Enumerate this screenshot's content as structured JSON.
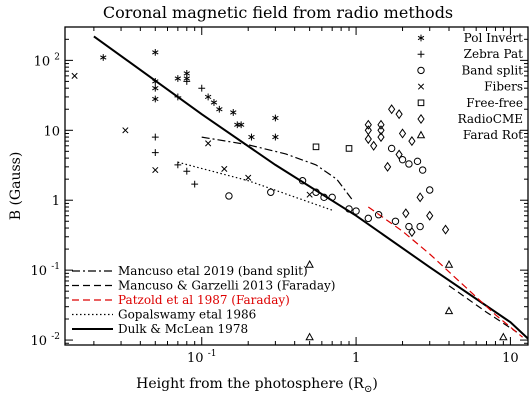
{
  "chart_data": {
    "type": "scatter",
    "title": "Coronal magnetic field from radio methods",
    "xlabel": "Height from the photosphere (R",
    "xlabel_sub": "⊙",
    "xlabel_close": ")",
    "ylabel": "B (Gauss)",
    "x_scale": "log",
    "y_scale": "log",
    "xlim": [
      0.013,
      13
    ],
    "ylim": [
      0.0085,
      300
    ],
    "grid": false,
    "x_ticks": [
      {
        "value": 0.1,
        "base": "10",
        "exp": "-1"
      },
      {
        "value": 1,
        "label": "1"
      },
      {
        "value": 10,
        "label": "10"
      }
    ],
    "y_ticks": [
      {
        "value": 0.01,
        "base": "10",
        "exp": "-2"
      },
      {
        "value": 0.1,
        "base": "10",
        "exp": "-1"
      },
      {
        "value": 1,
        "label": "1"
      },
      {
        "value": 10,
        "label": "10"
      },
      {
        "value": 100,
        "base": "10",
        "exp": "2"
      }
    ],
    "marker_legend": [
      {
        "symbol": "*",
        "label": "Pol Invert"
      },
      {
        "symbol": "+",
        "label": "Zebra Pat"
      },
      {
        "symbol": "○",
        "label": "Band split"
      },
      {
        "symbol": "×",
        "label": "Fibers"
      },
      {
        "symbol": "□",
        "label": "Free-free"
      },
      {
        "symbol": "◇",
        "label": "RadioCME"
      },
      {
        "symbol": "△",
        "label": "Farad Rot"
      }
    ],
    "line_legend": [
      {
        "label": "Mancuso etal 2019 (band split)",
        "dash": "dashdot",
        "color": "#000000"
      },
      {
        "label": "Mancuso & Garzelli 2013 (Faraday)",
        "dash": "dashed",
        "color": "#000000"
      },
      {
        "label": "Patzold et al 1987 (Faraday)",
        "dash": "dashed",
        "color": "#dd0000"
      },
      {
        "label": "Gopalswamy etal 1986",
        "dash": "dotted",
        "color": "#000000"
      },
      {
        "label": "Dulk & McLean 1978",
        "dash": "solid",
        "color": "#000000"
      }
    ],
    "series": [
      {
        "name": "Pol Invert",
        "marker": "star",
        "points": [
          [
            0.023,
            110
          ],
          [
            0.05,
            130
          ],
          [
            0.05,
            50
          ],
          [
            0.05,
            40
          ],
          [
            0.05,
            28
          ],
          [
            0.07,
            55
          ],
          [
            0.08,
            65
          ],
          [
            0.08,
            55
          ],
          [
            0.11,
            30
          ],
          [
            0.12,
            25
          ],
          [
            0.13,
            20
          ],
          [
            0.16,
            18
          ],
          [
            0.17,
            12
          ],
          [
            0.18,
            12
          ],
          [
            0.21,
            8
          ],
          [
            0.3,
            15
          ],
          [
            0.3,
            8
          ]
        ]
      },
      {
        "name": "Zebra Pat",
        "marker": "plus",
        "points": [
          [
            0.08,
            50
          ],
          [
            0.1,
            40
          ],
          [
            0.07,
            30
          ],
          [
            0.05,
            8
          ],
          [
            0.05,
            4.8
          ],
          [
            0.07,
            3.2
          ],
          [
            0.08,
            2.6
          ],
          [
            0.09,
            1.7
          ]
        ]
      },
      {
        "name": "Band split",
        "marker": "circle",
        "points": [
          [
            0.15,
            1.15
          ],
          [
            0.28,
            1.3
          ],
          [
            0.45,
            1.9
          ],
          [
            0.55,
            1.3
          ],
          [
            0.62,
            1.1
          ],
          [
            0.7,
            1.1
          ],
          [
            0.9,
            0.75
          ],
          [
            1.0,
            0.7
          ],
          [
            1.2,
            0.55
          ],
          [
            1.4,
            0.62
          ],
          [
            1.7,
            5.5
          ],
          [
            2.0,
            3.8
          ],
          [
            2.2,
            3.3
          ],
          [
            2.5,
            3.6
          ],
          [
            2.7,
            2.7
          ],
          [
            3.0,
            1.4
          ],
          [
            1.8,
            0.5
          ],
          [
            2.2,
            0.42
          ],
          [
            2.6,
            0.42
          ]
        ]
      },
      {
        "name": "Fibers",
        "marker": "cross",
        "points": [
          [
            0.015,
            60
          ],
          [
            0.032,
            10
          ],
          [
            0.05,
            2.7
          ],
          [
            0.11,
            6.5
          ],
          [
            0.14,
            2.8
          ],
          [
            0.2,
            2.1
          ],
          [
            0.5,
            1.2
          ]
        ]
      },
      {
        "name": "Free-free",
        "marker": "square",
        "points": [
          [
            0.55,
            5.8
          ],
          [
            0.9,
            5.5
          ]
        ]
      },
      {
        "name": "RadioCME",
        "marker": "diamond",
        "points": [
          [
            1.2,
            12
          ],
          [
            1.2,
            10
          ],
          [
            1.45,
            12
          ],
          [
            1.45,
            10
          ],
          [
            1.45,
            8
          ],
          [
            1.2,
            7.5
          ],
          [
            1.3,
            6
          ],
          [
            1.6,
            3
          ],
          [
            1.7,
            20
          ],
          [
            1.9,
            17
          ],
          [
            2.0,
            9
          ],
          [
            2.3,
            7
          ],
          [
            1.9,
            4.5
          ],
          [
            2.1,
            0.65
          ],
          [
            2.6,
            1.1
          ],
          [
            2.3,
            0.35
          ],
          [
            3.0,
            0.6
          ],
          [
            3.8,
            0.38
          ]
        ]
      },
      {
        "name": "Farad Rot",
        "marker": "triangle",
        "points": [
          [
            0.5,
            0.12
          ],
          [
            0.5,
            0.011
          ],
          [
            4.0,
            0.026
          ],
          [
            4.0,
            0.12
          ],
          [
            9.0,
            0.011
          ]
        ]
      }
    ],
    "lines": [
      {
        "name": "Dulk & McLean 1978",
        "points": [
          [
            0.02,
            220
          ],
          [
            0.1,
            17
          ],
          [
            0.3,
            3.2
          ],
          [
            1.0,
            0.6
          ],
          [
            3.0,
            0.11
          ],
          [
            10.0,
            0.018
          ],
          [
            13.0,
            0.0105
          ]
        ]
      },
      {
        "name": "Mancuso etal 2019 (band split)",
        "points": [
          [
            0.1,
            8
          ],
          [
            0.2,
            6.2
          ],
          [
            0.35,
            4.6
          ],
          [
            0.55,
            3.2
          ],
          [
            0.75,
            2.0
          ],
          [
            0.95,
            1.0
          ]
        ]
      },
      {
        "name": "Mancuso & Garzelli 2013 (Faraday)",
        "points": [
          [
            4.0,
            0.06
          ],
          [
            7.0,
            0.025
          ],
          [
            11.0,
            0.013
          ]
        ]
      },
      {
        "name": "Patzold et al 1987 (Faraday)",
        "points": [
          [
            1.2,
            0.8
          ],
          [
            2.0,
            0.36
          ],
          [
            3.0,
            0.17
          ],
          [
            5.0,
            0.06
          ],
          [
            8.0,
            0.023
          ],
          [
            12.0,
            0.011
          ]
        ]
      },
      {
        "name": "Gopalswamy etal 1986",
        "points": [
          [
            0.07,
            3.5
          ],
          [
            0.2,
            1.9
          ],
          [
            0.7,
            0.72
          ]
        ]
      }
    ]
  }
}
